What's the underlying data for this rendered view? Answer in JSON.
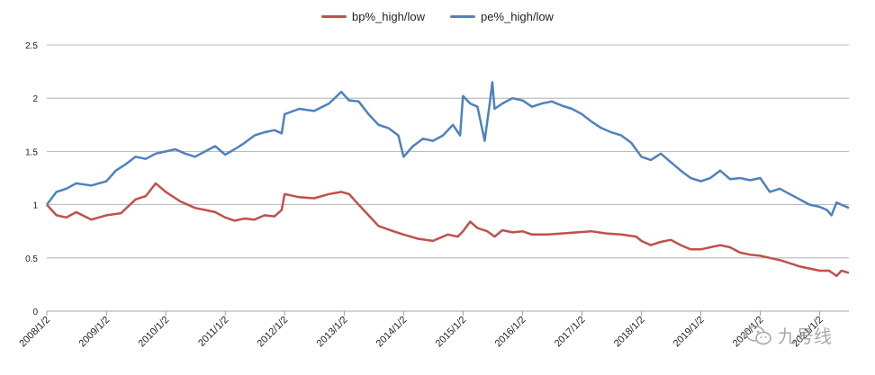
{
  "chart_data": {
    "type": "line",
    "title": "",
    "xlabel": "",
    "ylabel": "",
    "ylim": [
      0,
      2.5
    ],
    "yticks": [
      "0",
      "0.5",
      "1",
      "1.5",
      "2",
      "2.5"
    ],
    "yticks_values": [
      0,
      0.5,
      1,
      1.5,
      2,
      2.5
    ],
    "xticks": [
      "2008/1/2",
      "2009/1/2",
      "2010/1/2",
      "2011/1/2",
      "2012/1/2",
      "2013/1/2",
      "2014/1/2",
      "2015/1/2",
      "2016/1/2",
      "2017/1/2",
      "2018/1/2",
      "2019/1/2",
      "2020/1/2",
      "2021/1/2"
    ],
    "x_range": [
      "2008/1/2",
      "2021/6/30"
    ],
    "grid": "horizontal",
    "legend_position": "top-center",
    "series": [
      {
        "name": "bp%_high/low",
        "color": "#c0504d",
        "points": [
          [
            "2008/1/2",
            1.0
          ],
          [
            "2008/3/1",
            0.9
          ],
          [
            "2008/5/1",
            0.88
          ],
          [
            "2008/7/1",
            0.93
          ],
          [
            "2008/10/1",
            0.86
          ],
          [
            "2009/1/2",
            0.9
          ],
          [
            "2009/4/1",
            0.92
          ],
          [
            "2009/7/1",
            1.05
          ],
          [
            "2009/9/1",
            1.08
          ],
          [
            "2009/11/1",
            1.2
          ],
          [
            "2010/1/2",
            1.12
          ],
          [
            "2010/4/1",
            1.03
          ],
          [
            "2010/7/1",
            0.97
          ],
          [
            "2010/9/1",
            0.95
          ],
          [
            "2010/11/1",
            0.93
          ],
          [
            "2011/1/2",
            0.88
          ],
          [
            "2011/3/1",
            0.85
          ],
          [
            "2011/5/1",
            0.87
          ],
          [
            "2011/7/1",
            0.86
          ],
          [
            "2011/9/1",
            0.9
          ],
          [
            "2011/11/1",
            0.89
          ],
          [
            "2011/12/15",
            0.95
          ],
          [
            "2012/1/2",
            1.1
          ],
          [
            "2012/4/1",
            1.07
          ],
          [
            "2012/7/1",
            1.06
          ],
          [
            "2012/10/1",
            1.1
          ],
          [
            "2012/12/15",
            1.12
          ],
          [
            "2013/2/1",
            1.1
          ],
          [
            "2013/4/1",
            1.0
          ],
          [
            "2013/6/1",
            0.9
          ],
          [
            "2013/8/1",
            0.8
          ],
          [
            "2013/11/1",
            0.75
          ],
          [
            "2014/1/2",
            0.72
          ],
          [
            "2014/4/1",
            0.68
          ],
          [
            "2014/7/1",
            0.66
          ],
          [
            "2014/10/1",
            0.72
          ],
          [
            "2014/12/1",
            0.7
          ],
          [
            "2015/1/2",
            0.75
          ],
          [
            "2015/2/15",
            0.84
          ],
          [
            "2015/4/1",
            0.78
          ],
          [
            "2015/6/1",
            0.75
          ],
          [
            "2015/7/15",
            0.7
          ],
          [
            "2015/9/1",
            0.76
          ],
          [
            "2015/11/1",
            0.74
          ],
          [
            "2016/1/2",
            0.75
          ],
          [
            "2016/3/1",
            0.72
          ],
          [
            "2016/6/1",
            0.72
          ],
          [
            "2016/9/1",
            0.73
          ],
          [
            "2016/12/1",
            0.74
          ],
          [
            "2017/3/1",
            0.75
          ],
          [
            "2017/6/1",
            0.73
          ],
          [
            "2017/9/1",
            0.72
          ],
          [
            "2017/12/1",
            0.7
          ],
          [
            "2018/1/2",
            0.66
          ],
          [
            "2018/3/1",
            0.62
          ],
          [
            "2018/5/1",
            0.65
          ],
          [
            "2018/7/1",
            0.67
          ],
          [
            "2018/9/1",
            0.62
          ],
          [
            "2018/11/1",
            0.58
          ],
          [
            "2019/1/2",
            0.58
          ],
          [
            "2019/3/1",
            0.6
          ],
          [
            "2019/5/1",
            0.62
          ],
          [
            "2019/7/1",
            0.6
          ],
          [
            "2019/9/1",
            0.55
          ],
          [
            "2019/11/1",
            0.53
          ],
          [
            "2020/1/2",
            0.52
          ],
          [
            "2020/3/1",
            0.5
          ],
          [
            "2020/5/1",
            0.48
          ],
          [
            "2020/7/1",
            0.45
          ],
          [
            "2020/9/1",
            0.42
          ],
          [
            "2020/11/1",
            0.4
          ],
          [
            "2021/1/2",
            0.38
          ],
          [
            "2021/3/1",
            0.38
          ],
          [
            "2021/4/15",
            0.33
          ],
          [
            "2021/5/15",
            0.38
          ],
          [
            "2021/6/30",
            0.36
          ]
        ]
      },
      {
        "name": "pe%_high/low",
        "color": "#4f81bd",
        "points": [
          [
            "2008/1/2",
            1.0
          ],
          [
            "2008/3/1",
            1.12
          ],
          [
            "2008/5/1",
            1.15
          ],
          [
            "2008/7/1",
            1.2
          ],
          [
            "2008/10/1",
            1.18
          ],
          [
            "2009/1/2",
            1.22
          ],
          [
            "2009/3/1",
            1.32
          ],
          [
            "2009/5/1",
            1.38
          ],
          [
            "2009/7/1",
            1.45
          ],
          [
            "2009/9/1",
            1.43
          ],
          [
            "2009/11/1",
            1.48
          ],
          [
            "2010/1/2",
            1.5
          ],
          [
            "2010/3/1",
            1.52
          ],
          [
            "2010/5/1",
            1.48
          ],
          [
            "2010/7/1",
            1.45
          ],
          [
            "2010/9/1",
            1.5
          ],
          [
            "2010/11/1",
            1.55
          ],
          [
            "2011/1/2",
            1.47
          ],
          [
            "2011/3/1",
            1.52
          ],
          [
            "2011/5/1",
            1.58
          ],
          [
            "2011/7/1",
            1.65
          ],
          [
            "2011/9/1",
            1.68
          ],
          [
            "2011/11/1",
            1.7
          ],
          [
            "2011/12/15",
            1.67
          ],
          [
            "2012/1/2",
            1.85
          ],
          [
            "2012/4/1",
            1.9
          ],
          [
            "2012/7/1",
            1.88
          ],
          [
            "2012/10/1",
            1.95
          ],
          [
            "2012/12/15",
            2.06
          ],
          [
            "2013/2/1",
            1.98
          ],
          [
            "2013/4/1",
            1.97
          ],
          [
            "2013/6/1",
            1.85
          ],
          [
            "2013/8/1",
            1.75
          ],
          [
            "2013/10/1",
            1.72
          ],
          [
            "2013/12/1",
            1.65
          ],
          [
            "2014/1/2",
            1.45
          ],
          [
            "2014/3/1",
            1.55
          ],
          [
            "2014/5/1",
            1.62
          ],
          [
            "2014/7/1",
            1.6
          ],
          [
            "2014/9/1",
            1.65
          ],
          [
            "2014/11/1",
            1.75
          ],
          [
            "2014/12/15",
            1.65
          ],
          [
            "2015/1/2",
            2.02
          ],
          [
            "2015/2/15",
            1.95
          ],
          [
            "2015/4/1",
            1.92
          ],
          [
            "2015/5/15",
            1.6
          ],
          [
            "2015/6/15",
            1.95
          ],
          [
            "2015/7/1",
            2.15
          ],
          [
            "2015/7/15",
            1.9
          ],
          [
            "2015/9/1",
            1.95
          ],
          [
            "2015/11/1",
            2.0
          ],
          [
            "2016/1/2",
            1.98
          ],
          [
            "2016/3/1",
            1.92
          ],
          [
            "2016/5/1",
            1.95
          ],
          [
            "2016/7/1",
            1.97
          ],
          [
            "2016/9/1",
            1.93
          ],
          [
            "2016/11/1",
            1.9
          ],
          [
            "2017/1/2",
            1.85
          ],
          [
            "2017/3/1",
            1.78
          ],
          [
            "2017/5/1",
            1.72
          ],
          [
            "2017/7/1",
            1.68
          ],
          [
            "2017/9/1",
            1.65
          ],
          [
            "2017/11/1",
            1.58
          ],
          [
            "2018/1/2",
            1.45
          ],
          [
            "2018/3/1",
            1.42
          ],
          [
            "2018/5/1",
            1.48
          ],
          [
            "2018/7/1",
            1.4
          ],
          [
            "2018/9/1",
            1.32
          ],
          [
            "2018/11/1",
            1.25
          ],
          [
            "2019/1/2",
            1.22
          ],
          [
            "2019/3/1",
            1.25
          ],
          [
            "2019/5/1",
            1.32
          ],
          [
            "2019/7/1",
            1.24
          ],
          [
            "2019/9/1",
            1.25
          ],
          [
            "2019/11/1",
            1.23
          ],
          [
            "2020/1/2",
            1.25
          ],
          [
            "2020/3/1",
            1.12
          ],
          [
            "2020/5/1",
            1.15
          ],
          [
            "2020/7/1",
            1.1
          ],
          [
            "2020/9/1",
            1.05
          ],
          [
            "2020/11/1",
            1.0
          ],
          [
            "2021/1/2",
            0.98
          ],
          [
            "2021/2/15",
            0.95
          ],
          [
            "2021/3/15",
            0.9
          ],
          [
            "2021/4/15",
            1.02
          ],
          [
            "2021/5/15",
            1.0
          ],
          [
            "2021/6/30",
            0.97
          ]
        ]
      }
    ]
  },
  "watermark": {
    "text": "九号线",
    "icon": "wechat-icon"
  }
}
